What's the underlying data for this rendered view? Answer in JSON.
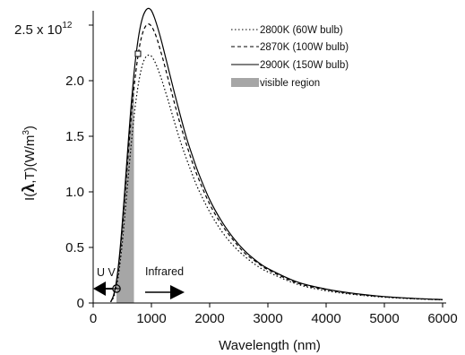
{
  "chart_data": {
    "type": "line",
    "title": "",
    "xlabel": "Wavelength (nm)",
    "ylabel_prefix": "I(",
    "ylabel_lambda": "λ",
    "ylabel_suffix": ",T)(W/m",
    "ylabel_sup": "3",
    "ylabel_close": ")",
    "xlim": [
      0,
      6000
    ],
    "ylim": [
      0,
      2.5
    ],
    "y_scale_label_prefix": "2.5 x 10",
    "y_scale_label_exp": "12",
    "x_ticks": [
      "0",
      "1000",
      "2000",
      "3000",
      "4000",
      "5000",
      "6000"
    ],
    "y_ticks": [
      "0",
      "0.5",
      "1.0",
      "1.5",
      "2.0"
    ],
    "x_tick_values": [
      0,
      1000,
      2000,
      3000,
      4000,
      5000,
      6000
    ],
    "y_tick_values": [
      0,
      0.5,
      1.0,
      1.5,
      2.0
    ],
    "grid": false,
    "legend_placement": "top-right",
    "x": [
      300,
      350,
      400,
      450,
      500,
      550,
      600,
      650,
      700,
      750,
      800,
      850,
      900,
      950,
      1000,
      1050,
      1100,
      1150,
      1200,
      1300,
      1400,
      1500,
      1600,
      1700,
      1800,
      2000,
      2200,
      2400,
      2600,
      2800,
      3000,
      3500,
      4000,
      4500,
      5000,
      5500,
      6000
    ],
    "series": [
      {
        "name": "2800K (60W bulb)",
        "style": "dotted",
        "values": [
          0.01,
          0.05,
          0.14,
          0.31,
          0.54,
          0.82,
          1.12,
          1.41,
          1.67,
          1.88,
          2.04,
          2.15,
          2.21,
          2.23,
          2.22,
          2.18,
          2.12,
          2.05,
          1.97,
          1.8,
          1.62,
          1.45,
          1.3,
          1.16,
          1.03,
          0.82,
          0.65,
          0.52,
          0.42,
          0.34,
          0.28,
          0.17,
          0.11,
          0.075,
          0.052,
          0.038,
          0.028
        ]
      },
      {
        "name": "2870K (100W bulb)",
        "style": "dashed",
        "values": [
          0.01,
          0.06,
          0.18,
          0.38,
          0.66,
          0.99,
          1.33,
          1.65,
          1.93,
          2.15,
          2.32,
          2.43,
          2.49,
          2.51,
          2.49,
          2.44,
          2.37,
          2.28,
          2.19,
          1.99,
          1.79,
          1.6,
          1.43,
          1.27,
          1.13,
          0.89,
          0.71,
          0.57,
          0.45,
          0.37,
          0.3,
          0.18,
          0.12,
          0.08,
          0.056,
          0.04,
          0.03
        ]
      },
      {
        "name": "2900K (150W bulb)",
        "style": "solid",
        "values": [
          0.01,
          0.07,
          0.2,
          0.42,
          0.72,
          1.07,
          1.43,
          1.77,
          2.06,
          2.29,
          2.46,
          2.57,
          2.63,
          2.65,
          2.63,
          2.57,
          2.49,
          2.4,
          2.3,
          2.09,
          1.88,
          1.68,
          1.49,
          1.33,
          1.18,
          0.93,
          0.74,
          0.59,
          0.47,
          0.38,
          0.31,
          0.19,
          0.125,
          0.085,
          0.058,
          0.042,
          0.031
        ]
      }
    ],
    "visible_region": {
      "label": "visible region",
      "x_range": [
        400,
        700
      ]
    },
    "annotations": {
      "uv_label": "U V",
      "infrared_label": "Infrared"
    }
  },
  "colors": {
    "line": "#000000",
    "visible_fill": "#a6a6a6"
  }
}
